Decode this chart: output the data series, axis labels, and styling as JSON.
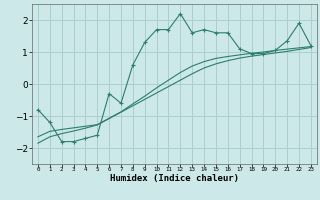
{
  "xlabel": "Humidex (Indice chaleur)",
  "ylabel": "",
  "bg_color": "#cce8e8",
  "grid_color": "#aacfcf",
  "line_color": "#2e7d6e",
  "x_data": [
    0,
    1,
    2,
    3,
    4,
    5,
    6,
    7,
    8,
    9,
    10,
    11,
    12,
    13,
    14,
    15,
    16,
    17,
    18,
    19,
    20,
    21,
    22,
    23
  ],
  "y_humidex": [
    -0.8,
    -1.2,
    -1.8,
    -1.8,
    -1.7,
    -1.6,
    -0.3,
    -0.6,
    0.6,
    1.3,
    1.7,
    1.7,
    2.2,
    1.6,
    1.7,
    1.6,
    1.6,
    1.1,
    0.95,
    0.95,
    1.05,
    1.35,
    1.9,
    1.2
  ],
  "y_line1": [
    -1.85,
    -1.65,
    -1.55,
    -1.47,
    -1.38,
    -1.28,
    -1.08,
    -0.88,
    -0.68,
    -0.48,
    -0.28,
    -0.08,
    0.12,
    0.32,
    0.5,
    0.63,
    0.73,
    0.81,
    0.87,
    0.92,
    0.97,
    1.02,
    1.08,
    1.14
  ],
  "y_line2": [
    -1.65,
    -1.48,
    -1.42,
    -1.37,
    -1.32,
    -1.27,
    -1.07,
    -0.87,
    -0.62,
    -0.38,
    -0.12,
    0.12,
    0.36,
    0.56,
    0.7,
    0.8,
    0.86,
    0.91,
    0.96,
    1.0,
    1.05,
    1.09,
    1.13,
    1.17
  ],
  "ylim": [
    -2.5,
    2.5
  ],
  "yticks": [
    -2,
    -1,
    0,
    1,
    2
  ],
  "xlim": [
    -0.5,
    23.5
  ],
  "xtick_labels": [
    "0",
    "1",
    "2",
    "3",
    "4",
    "5",
    "6",
    "7",
    "8",
    "9",
    "10",
    "11",
    "12",
    "13",
    "14",
    "15",
    "16",
    "17",
    "18",
    "19",
    "20",
    "21",
    "22",
    "23"
  ]
}
